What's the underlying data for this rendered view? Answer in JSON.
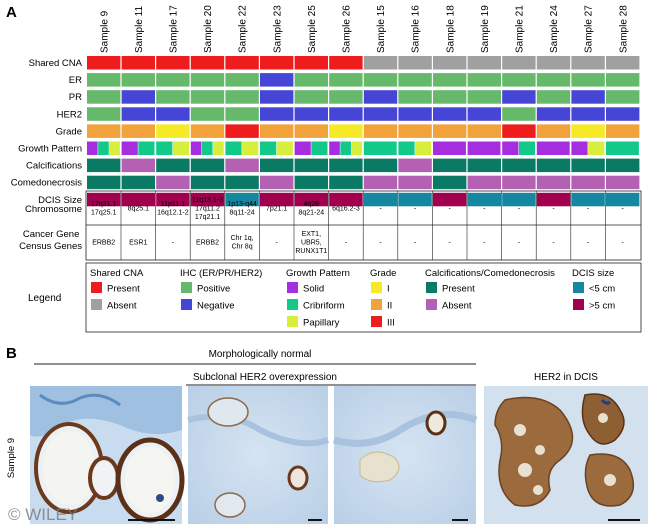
{
  "panel_labels": {
    "a": "A",
    "b": "B"
  },
  "samples": [
    "Sample 9",
    "Sample 11",
    "Sample 17",
    "Sample 20",
    "Sample 22",
    "Sample 23",
    "Sample 25",
    "Sample 26",
    "Sample 15",
    "Sample 16",
    "Sample 18",
    "Sample 19",
    "Sample 21",
    "Sample 24",
    "Sample 27",
    "Sample 28"
  ],
  "colors": {
    "present_red": "#ee1c1c",
    "absent_grey": "#a0a0a0",
    "positive_green": "#66b86a",
    "negative_blue": "#4646d6",
    "grade_I": "#f5ea25",
    "grade_II": "#f2a23a",
    "grade_III": "#ee1c1c",
    "solid": "#a72ee0",
    "cribriform": "#12c98a",
    "papillary": "#d8ee3c",
    "calc_present": "#0b7a64",
    "calc_absent": "#b461b4",
    "dcis_small": "#1687a0",
    "dcis_large": "#a1004e"
  },
  "rows": [
    {
      "label": "Shared CNA",
      "key": "cna",
      "values": [
        "P",
        "P",
        "P",
        "P",
        "P",
        "P",
        "P",
        "P",
        "A",
        "A",
        "A",
        "A",
        "A",
        "A",
        "A",
        "A"
      ]
    },
    {
      "label": "ER",
      "key": "er",
      "values": [
        "+",
        "+",
        "+",
        "+",
        "+",
        "-",
        "+",
        "+",
        "+",
        "+",
        "+",
        "+",
        "+",
        "+",
        "+",
        "+"
      ]
    },
    {
      "label": "PR",
      "key": "pr",
      "values": [
        "+",
        "-",
        "+",
        "+",
        "+",
        "-",
        "+",
        "+",
        "-",
        "+",
        "+",
        "+",
        "-",
        "+",
        "-",
        "+"
      ]
    },
    {
      "label": "HER2",
      "key": "her2",
      "values": [
        "+",
        "-",
        "-",
        "+",
        "+",
        "-",
        "-",
        "-",
        "-",
        "-",
        "-",
        "-",
        "+",
        "-",
        "-",
        "-"
      ]
    },
    {
      "label": "Grade",
      "key": "grade",
      "values": [
        "II",
        "II",
        "I",
        "II",
        "III",
        "II",
        "II",
        "I",
        "II",
        "II",
        "II",
        "II",
        "III",
        "II",
        "I",
        "II"
      ]
    },
    {
      "label": "Growth Pattern",
      "key": "growth",
      "values": [
        [
          "S",
          "C",
          "P"
        ],
        [
          "S",
          "C"
        ],
        [
          "C",
          "P"
        ],
        [
          "S",
          "C",
          "P"
        ],
        [
          "C",
          "P"
        ],
        [
          "C",
          "P"
        ],
        [
          "S",
          "C"
        ],
        [
          "S",
          "C",
          "P"
        ],
        [
          "C"
        ],
        [
          "C",
          "P"
        ],
        [
          "S"
        ],
        [
          "S"
        ],
        [
          "S",
          "C"
        ],
        [
          "S"
        ],
        [
          "S",
          "P"
        ],
        [
          "C"
        ]
      ]
    },
    {
      "label": "Calcifications",
      "key": "calc",
      "values": [
        "P",
        "A",
        "P",
        "P",
        "A",
        "P",
        "P",
        "P",
        "P",
        "A",
        "P",
        "P",
        "P",
        "P",
        "P",
        "P"
      ]
    },
    {
      "label": "Comedonecrosis",
      "key": "comedo",
      "values": [
        "P",
        "P",
        "A",
        "P",
        "P",
        "A",
        "P",
        "P",
        "A",
        "A",
        "P",
        "A",
        "A",
        "A",
        "A",
        "A"
      ]
    },
    {
      "label": "DCIS Size",
      "key": "dcis",
      "values": [
        "L",
        "L",
        "L",
        "L",
        "S",
        "L",
        "L",
        "L",
        "S",
        "S",
        "L",
        "S",
        "S",
        "L",
        "S",
        "S"
      ]
    }
  ],
  "chromosome": {
    "label": "Chromosome",
    "values": [
      [
        "17q21.1",
        "17q25.1"
      ],
      [
        "8q25.1"
      ],
      [
        "11p11.1",
        "16q12.1-2"
      ],
      [
        "11q13.1-3",
        "17q11.2",
        "17q21.1"
      ],
      [
        "1p13-q44",
        "8q11-24"
      ],
      [
        "7p21.1"
      ],
      [
        "4q26",
        "8q21-24"
      ],
      [
        "6q16.2-3"
      ],
      [
        "-"
      ],
      [
        "-"
      ],
      [
        "-"
      ],
      [
        "-"
      ],
      [
        "-"
      ],
      [
        "-"
      ],
      [
        "-"
      ],
      [
        "-"
      ]
    ]
  },
  "cancer_gene": {
    "label": [
      "Cancer Gene",
      "Census Genes"
    ],
    "values": [
      [
        "ERBB2"
      ],
      [
        "ESR1"
      ],
      [
        "-"
      ],
      [
        "ERBB2"
      ],
      [
        "Chr 1q,",
        "Chr 8q"
      ],
      [
        "-"
      ],
      [
        "EXT1,",
        "UBR5,",
        "RUNX1T1"
      ],
      [
        "-"
      ],
      [
        "-"
      ],
      [
        "-"
      ],
      [
        "-"
      ],
      [
        "-"
      ],
      [
        "-"
      ],
      [
        "-"
      ],
      [
        "-"
      ],
      [
        "-"
      ]
    ]
  },
  "legend": {
    "title": "Legend",
    "groups": [
      {
        "title": "Shared CNA",
        "items": [
          {
            "label": "Present",
            "color": "#ee1c1c"
          },
          {
            "label": "Absent",
            "color": "#a0a0a0"
          }
        ]
      },
      {
        "title": "IHC (ER/PR/HER2)",
        "items": [
          {
            "label": "Positive",
            "color": "#66b86a"
          },
          {
            "label": "Negative",
            "color": "#4646d6"
          }
        ]
      },
      {
        "title": "Growth Pattern",
        "items": [
          {
            "label": "Solid",
            "color": "#a72ee0"
          },
          {
            "label": "Cribriform",
            "color": "#12c98a"
          },
          {
            "label": "Papillary",
            "color": "#d8ee3c"
          }
        ]
      },
      {
        "title": "Grade",
        "items": [
          {
            "label": "I",
            "color": "#f5ea25"
          },
          {
            "label": "II",
            "color": "#f2a23a"
          },
          {
            "label": "III",
            "color": "#ee1c1c"
          }
        ]
      },
      {
        "title": "Calcifications/Comedonecrosis",
        "items": [
          {
            "label": "Present",
            "color": "#0b7a64"
          },
          {
            "label": "Absent",
            "color": "#b461b4"
          }
        ]
      },
      {
        "title": "DCIS size",
        "items": [
          {
            "label": "<5 cm",
            "color": "#1687a0"
          },
          {
            "label": ">5 cm",
            "color": "#a1004e"
          }
        ]
      }
    ]
  },
  "panel_b": {
    "morph_label": "Morphologically normal",
    "subclonal_label": "Subclonal HER2 overexpression",
    "dcis_label": "HER2 in DCIS",
    "sample_label": "Sample 9",
    "watermark": "© WILEY"
  }
}
